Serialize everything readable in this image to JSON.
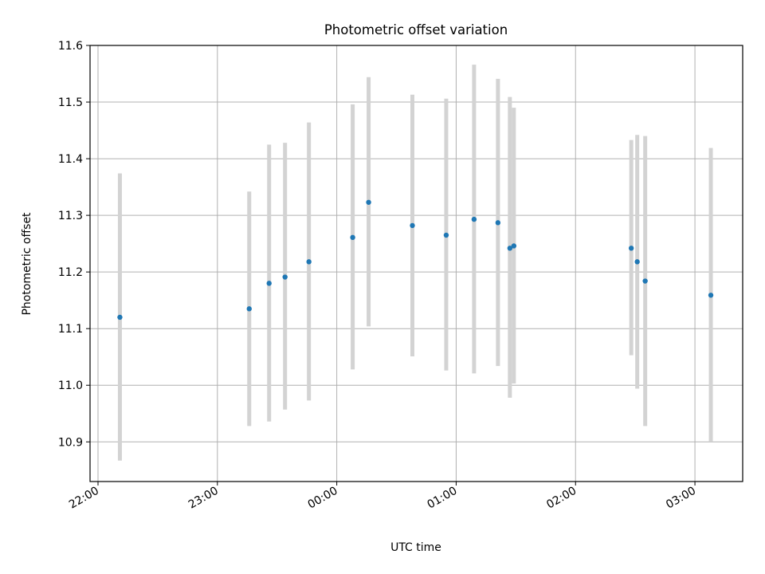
{
  "chart_data": {
    "type": "scatter",
    "title": "Photometric offset variation",
    "xlabel": "UTC time",
    "ylabel": "Photometric offset",
    "x_axis_type": "time",
    "x_range": [
      "21:56",
      "03:24"
    ],
    "ylim": [
      10.83,
      11.6
    ],
    "x_ticks": [
      "22:00",
      "23:00",
      "00:00",
      "01:00",
      "02:00",
      "03:00"
    ],
    "y_ticks": [
      "10.9",
      "11.0",
      "11.1",
      "11.2",
      "11.3",
      "11.4",
      "11.5",
      "11.6"
    ],
    "grid": true,
    "colors": {
      "points": "#1f77b4",
      "error_bars": "#d3d3d3",
      "grid": "#b0b0b0"
    },
    "points": [
      {
        "time": "22:11",
        "value": 11.12,
        "low": 10.867,
        "high": 11.374
      },
      {
        "time": "23:16",
        "value": 11.135,
        "low": 10.928,
        "high": 11.342
      },
      {
        "time": "23:26",
        "value": 11.18,
        "low": 10.936,
        "high": 11.425
      },
      {
        "time": "23:34",
        "value": 11.191,
        "low": 10.957,
        "high": 11.428
      },
      {
        "time": "23:46",
        "value": 11.218,
        "low": 10.973,
        "high": 11.464
      },
      {
        "time": "00:08",
        "value": 11.261,
        "low": 11.028,
        "high": 11.496
      },
      {
        "time": "00:16",
        "value": 11.323,
        "low": 11.104,
        "high": 11.544
      },
      {
        "time": "00:38",
        "value": 11.282,
        "low": 11.051,
        "high": 11.513
      },
      {
        "time": "00:55",
        "value": 11.265,
        "low": 11.026,
        "high": 11.506
      },
      {
        "time": "01:09",
        "value": 11.293,
        "low": 11.021,
        "high": 11.566
      },
      {
        "time": "01:21",
        "value": 11.287,
        "low": 11.034,
        "high": 11.541
      },
      {
        "time": "01:27",
        "value": 11.242,
        "low": 10.978,
        "high": 11.509
      },
      {
        "time": "01:29",
        "value": 11.246,
        "low": 11.003,
        "high": 11.49
      },
      {
        "time": "02:28",
        "value": 11.242,
        "low": 11.053,
        "high": 11.433
      },
      {
        "time": "02:31",
        "value": 11.218,
        "low": 10.994,
        "high": 11.442
      },
      {
        "time": "02:35",
        "value": 11.184,
        "low": 10.928,
        "high": 11.44
      },
      {
        "time": "03:08",
        "value": 11.159,
        "low": 10.901,
        "high": 11.419
      }
    ]
  }
}
